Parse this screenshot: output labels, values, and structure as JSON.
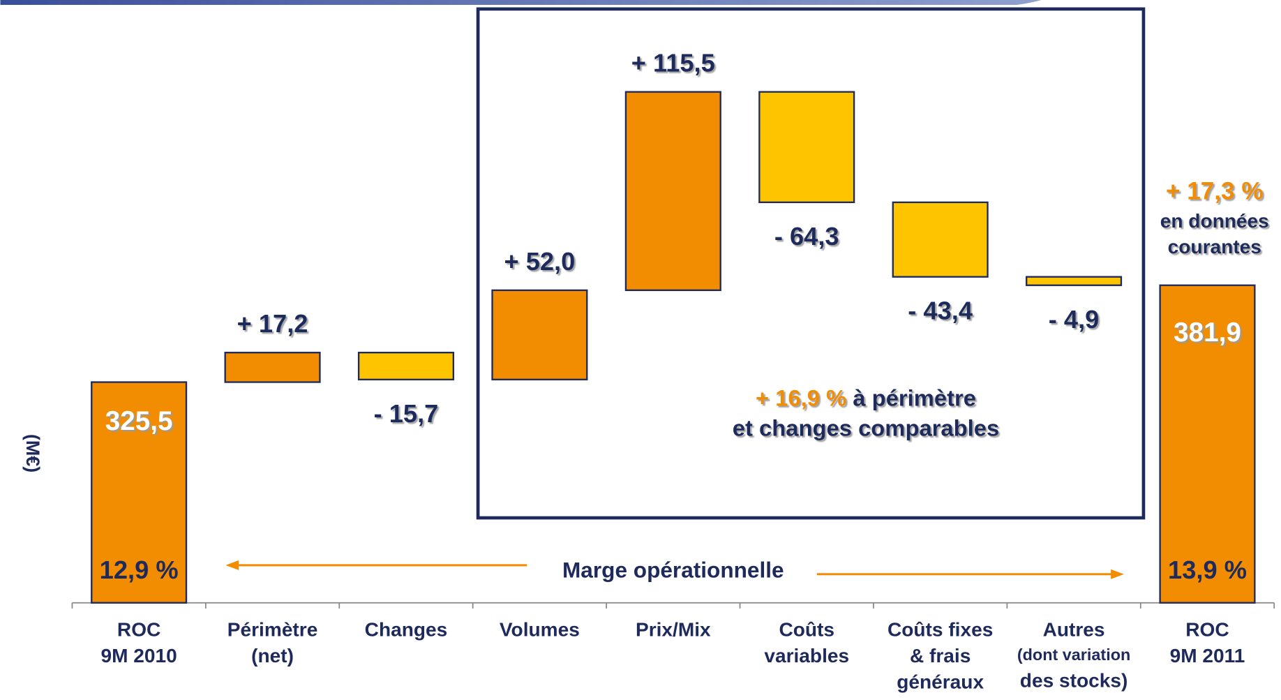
{
  "chart_data": {
    "type": "waterfall",
    "y_label": "(M€)",
    "categories": [
      "ROC\n9M 2010",
      "Périmètre\n(net)",
      "Changes",
      "Volumes",
      "Prix/Mix",
      "Coûts\nvariables",
      "Coûts fixes\n& frais\ngénéraux",
      "Autres\n(dont variation\ndes stocks)",
      "ROC\n9M 2011"
    ],
    "measure": [
      "absolute",
      "relative",
      "relative",
      "relative",
      "relative",
      "relative",
      "relative",
      "relative",
      "absolute"
    ],
    "values": [
      325.5,
      17.2,
      -15.7,
      52.0,
      115.5,
      -64.3,
      -43.4,
      -4.9,
      381.9
    ],
    "value_labels": [
      "325,5",
      "+ 17,2",
      "- 15,7",
      "+ 52,0",
      "+ 115,5",
      "- 64,3",
      "- 43,4",
      "- 4,9",
      "381,9"
    ],
    "total_color": "#f28c00",
    "increase_color": "#f28c00",
    "decrease_color": "#ffc400",
    "ylim": [
      197,
      548
    ],
    "annotations": {
      "margin_start": "12,9 %",
      "margin_end": "13,9 %",
      "margin_label": "Marge opérationnelle",
      "comparable_pct": "+ 16,9 %",
      "comparable_text_1": "à périmètre",
      "comparable_text_2": "et changes comparables",
      "current_pct": "+ 17,3 %",
      "current_text_1": "en données",
      "current_text_2": "courantes"
    }
  }
}
